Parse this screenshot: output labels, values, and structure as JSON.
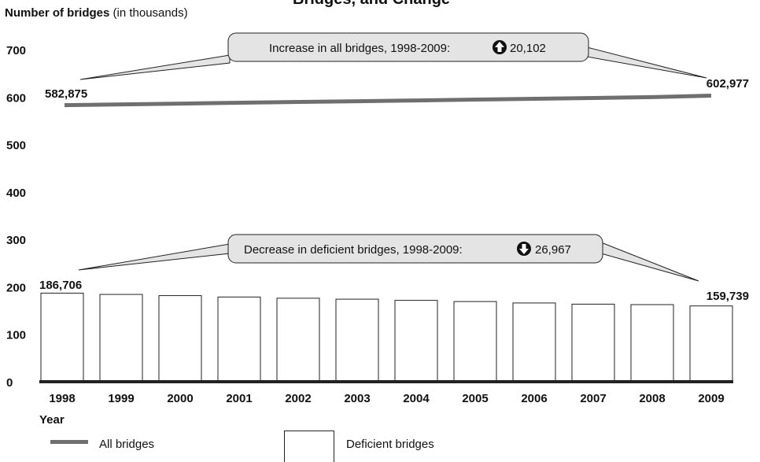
{
  "chart_data": {
    "type": "bar",
    "title": "Bridges, and Change",
    "ylabel_bold": "Number of bridges",
    "ylabel_rest": " (in thousands)",
    "xlabel": "Year",
    "ylim": [
      0,
      700
    ],
    "yticks": [
      "0",
      "100",
      "200",
      "300",
      "400",
      "500",
      "600",
      "700"
    ],
    "categories": [
      "1998",
      "1999",
      "2000",
      "2001",
      "2002",
      "2003",
      "2004",
      "2005",
      "2006",
      "2007",
      "2008",
      "2009"
    ],
    "series": [
      {
        "name": "Deficient bridges",
        "kind": "bar",
        "color": "#ffffff",
        "values": [
          186.706,
          184.0,
          181.5,
          178.5,
          176.0,
          174.0,
          171.5,
          169.0,
          166.0,
          163.5,
          162.5,
          159.739
        ]
      },
      {
        "name": "All bridges",
        "kind": "line",
        "color": "#6f6f6f",
        "values": [
          582.875,
          584.5,
          586.2,
          588.0,
          589.6,
          591.2,
          592.9,
          594.6,
          596.3,
          598.0,
          599.8,
          602.977
        ]
      }
    ],
    "annotations": {
      "all_start_label": "582,875",
      "all_end_label": "602,977",
      "def_start_label": "186,706",
      "def_end_label": "159,739",
      "increase_text": "Increase in all bridges, 1998-2009:",
      "increase_value": "20,102",
      "increase_icon": "arrow-up-circle-icon",
      "decrease_text": "Decrease in deficient bridges, 1998-2009:",
      "decrease_value": "26,967",
      "decrease_icon": "arrow-down-circle-icon"
    },
    "legend": [
      "All bridges",
      "Deficient bridges"
    ],
    "legend_position": "bottom",
    "grid": false
  }
}
